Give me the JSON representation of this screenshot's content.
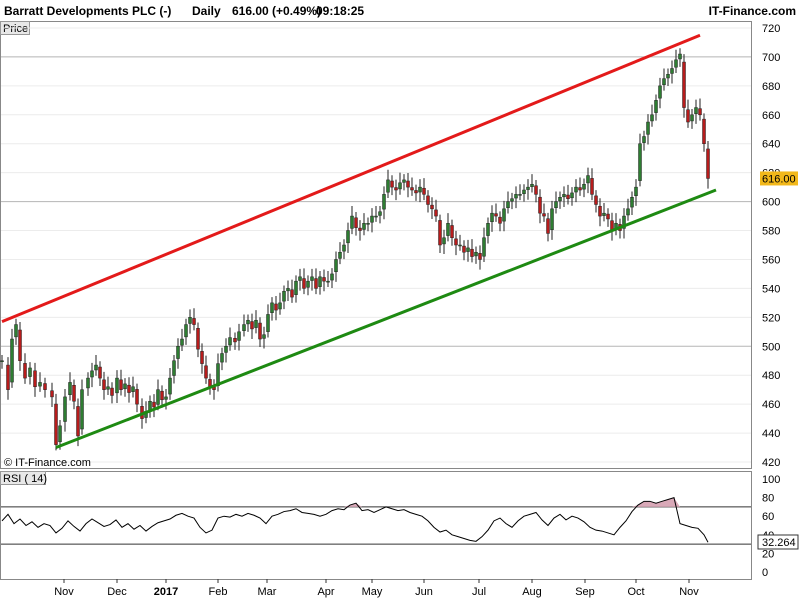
{
  "header": {
    "title": "Barratt Developments PLC (-)",
    "period": "Daily",
    "price": "616.00 (+0.49%)",
    "time": "09:18:25",
    "brand": "IT-Finance.com"
  },
  "watermark": "© IT-Finance.com",
  "colors": {
    "up": "#2e7d32",
    "down": "#b71c1c",
    "upper_channel": "#e31a1a",
    "lower_channel": "#1e8a12",
    "rsi_line": "#000000",
    "rsi_fill": "#d9a9b8",
    "current_label_bg": "#f2b81a"
  },
  "chart_data": [
    {
      "type": "candlestick",
      "title": "Price",
      "ylim": [
        420,
        720
      ],
      "yticks": [
        420,
        440,
        460,
        480,
        500,
        520,
        540,
        560,
        580,
        600,
        620,
        640,
        660,
        680,
        700,
        720
      ],
      "ytick_labels": [
        "420",
        "440",
        "460",
        "480",
        "500",
        "520",
        "540",
        "560",
        "580",
        "600",
        "620",
        "640",
        "660",
        "680",
        "700",
        "720"
      ],
      "xticks": [
        {
          "label": "Nov",
          "x": 64
        },
        {
          "label": "Dec",
          "x": 117
        },
        {
          "label": "2017",
          "x": 166
        },
        {
          "label": "Feb",
          "x": 218
        },
        {
          "label": "Mar",
          "x": 267
        },
        {
          "label": "Apr",
          "x": 326
        },
        {
          "label": "May",
          "x": 372
        },
        {
          "label": "Jun",
          "x": 424
        },
        {
          "label": "Jul",
          "x": 479
        },
        {
          "label": "Aug",
          "x": 532
        },
        {
          "label": "Sep",
          "x": 585
        },
        {
          "label": "Oct",
          "x": 636
        },
        {
          "label": "Nov",
          "x": 689
        }
      ],
      "x_range": [
        0,
        752
      ],
      "close_series": [
        [
          2,
          490
        ],
        [
          8,
          470
        ],
        [
          12,
          505
        ],
        [
          16,
          515
        ],
        [
          20,
          490
        ],
        [
          25,
          478
        ],
        [
          30,
          485
        ],
        [
          35,
          472
        ],
        [
          40,
          475
        ],
        [
          45,
          470
        ],
        [
          52,
          465
        ],
        [
          56,
          432
        ],
        [
          60,
          445
        ],
        [
          65,
          465
        ],
        [
          70,
          475
        ],
        [
          74,
          462
        ],
        [
          78,
          438
        ],
        [
          82,
          470
        ],
        [
          88,
          478
        ],
        [
          92,
          483
        ],
        [
          96,
          487
        ],
        [
          100,
          478
        ],
        [
          104,
          470
        ],
        [
          108,
          472
        ],
        [
          112,
          466
        ],
        [
          117,
          478
        ],
        [
          121,
          470
        ],
        [
          125,
          474
        ],
        [
          129,
          468
        ],
        [
          133,
          472
        ],
        [
          137,
          460
        ],
        [
          142,
          450
        ],
        [
          146,
          455
        ],
        [
          150,
          462
        ],
        [
          154,
          458
        ],
        [
          158,
          470
        ],
        [
          162,
          463
        ],
        [
          166,
          465
        ],
        [
          170,
          478
        ],
        [
          174,
          490
        ],
        [
          178,
          500
        ],
        [
          182,
          505
        ],
        [
          186,
          515
        ],
        [
          190,
          520
        ],
        [
          194,
          515
        ],
        [
          198,
          498
        ],
        [
          202,
          488
        ],
        [
          206,
          478
        ],
        [
          210,
          472
        ],
        [
          214,
          470
        ],
        [
          218,
          488
        ],
        [
          222,
          495
        ],
        [
          226,
          500
        ],
        [
          230,
          506
        ],
        [
          235,
          503
        ],
        [
          239,
          510
        ],
        [
          244,
          515
        ],
        [
          248,
          518
        ],
        [
          252,
          512
        ],
        [
          256,
          518
        ],
        [
          260,
          505
        ],
        [
          264,
          508
        ],
        [
          268,
          522
        ],
        [
          272,
          530
        ],
        [
          276,
          525
        ],
        [
          280,
          530
        ],
        [
          284,
          538
        ],
        [
          288,
          540
        ],
        [
          292,
          534
        ],
        [
          296,
          545
        ],
        [
          300,
          548
        ],
        [
          304,
          540
        ],
        [
          308,
          545
        ],
        [
          312,
          548
        ],
        [
          316,
          540
        ],
        [
          320,
          548
        ],
        [
          324,
          545
        ],
        [
          328,
          545
        ],
        [
          332,
          550
        ],
        [
          336,
          560
        ],
        [
          340,
          565
        ],
        [
          344,
          570
        ],
        [
          348,
          580
        ],
        [
          352,
          590
        ],
        [
          356,
          582
        ],
        [
          360,
          580
        ],
        [
          364,
          585
        ],
        [
          368,
          585
        ],
        [
          372,
          590
        ],
        [
          376,
          590
        ],
        [
          380,
          593
        ],
        [
          384,
          605
        ],
        [
          388,
          615
        ],
        [
          392,
          610
        ],
        [
          396,
          608
        ],
        [
          400,
          613
        ],
        [
          404,
          615
        ],
        [
          408,
          610
        ],
        [
          412,
          608
        ],
        [
          416,
          606
        ],
        [
          420,
          610
        ],
        [
          424,
          605
        ],
        [
          428,
          598
        ],
        [
          432,
          595
        ],
        [
          436,
          590
        ],
        [
          440,
          570
        ],
        [
          444,
          575
        ],
        [
          448,
          585
        ],
        [
          452,
          575
        ],
        [
          456,
          570
        ],
        [
          460,
          570
        ],
        [
          464,
          565
        ],
        [
          468,
          568
        ],
        [
          472,
          562
        ],
        [
          476,
          565
        ],
        [
          480,
          560
        ],
        [
          484,
          575
        ],
        [
          488,
          585
        ],
        [
          492,
          592
        ],
        [
          496,
          590
        ],
        [
          500,
          585
        ],
        [
          504,
          595
        ],
        [
          508,
          600
        ],
        [
          512,
          602
        ],
        [
          516,
          605
        ],
        [
          520,
          605
        ],
        [
          524,
          608
        ],
        [
          528,
          610
        ],
        [
          532,
          612
        ],
        [
          536,
          605
        ],
        [
          540,
          592
        ],
        [
          544,
          590
        ],
        [
          548,
          578
        ],
        [
          552,
          595
        ],
        [
          556,
          600
        ],
        [
          560,
          603
        ],
        [
          564,
          605
        ],
        [
          568,
          602
        ],
        [
          572,
          606
        ],
        [
          576,
          610
        ],
        [
          580,
          608
        ],
        [
          584,
          612
        ],
        [
          588,
          618
        ],
        [
          592,
          605
        ],
        [
          596,
          598
        ],
        [
          600,
          590
        ],
        [
          604,
          592
        ],
        [
          608,
          588
        ],
        [
          612,
          580
        ],
        [
          616,
          585
        ],
        [
          620,
          580
        ],
        [
          624,
          590
        ],
        [
          628,
          595
        ],
        [
          632,
          603
        ],
        [
          636,
          610
        ],
        [
          640,
          640
        ],
        [
          644,
          645
        ],
        [
          648,
          655
        ],
        [
          652,
          660
        ],
        [
          656,
          670
        ],
        [
          660,
          680
        ],
        [
          664,
          685
        ],
        [
          668,
          688
        ],
        [
          672,
          692
        ],
        [
          676,
          698
        ],
        [
          680,
          702
        ],
        [
          684,
          665
        ],
        [
          688,
          655
        ],
        [
          692,
          660
        ],
        [
          696,
          665
        ],
        [
          700,
          660
        ],
        [
          704,
          640
        ],
        [
          708,
          616
        ]
      ],
      "channel_lines": [
        {
          "name": "upper",
          "x1": 2,
          "y1": 517,
          "x2": 700,
          "y2": 715
        },
        {
          "name": "lower",
          "x1": 56,
          "y1": 430,
          "x2": 716,
          "y2": 608
        }
      ],
      "current_value": "616.00"
    },
    {
      "type": "line",
      "title": "RSI ( 14)",
      "ylim": [
        0,
        100
      ],
      "yticks": [
        0,
        20,
        40,
        60,
        80,
        100
      ],
      "ytick_labels": [
        "0",
        "20",
        "40",
        "60",
        "80",
        "100"
      ],
      "levels": [
        70,
        30
      ],
      "current_value": "32.264",
      "x": [
        2,
        8,
        14,
        20,
        26,
        32,
        38,
        44,
        50,
        56,
        62,
        68,
        74,
        80,
        86,
        92,
        98,
        104,
        110,
        116,
        122,
        128,
        134,
        140,
        146,
        152,
        158,
        164,
        170,
        176,
        182,
        188,
        194,
        200,
        206,
        212,
        218,
        224,
        230,
        236,
        242,
        248,
        254,
        260,
        266,
        272,
        278,
        284,
        290,
        296,
        302,
        308,
        314,
        320,
        326,
        332,
        338,
        344,
        350,
        356,
        362,
        368,
        374,
        380,
        386,
        392,
        398,
        404,
        410,
        416,
        422,
        428,
        434,
        440,
        446,
        452,
        458,
        464,
        470,
        476,
        482,
        488,
        494,
        500,
        506,
        512,
        518,
        524,
        530,
        536,
        542,
        548,
        554,
        560,
        566,
        572,
        578,
        584,
        590,
        596,
        602,
        608,
        614,
        620,
        626,
        632,
        638,
        644,
        650,
        656,
        662,
        668,
        674,
        680,
        686,
        692,
        698,
        704,
        708
      ],
      "values": [
        55,
        62,
        52,
        57,
        50,
        54,
        48,
        52,
        50,
        42,
        47,
        55,
        49,
        44,
        52,
        57,
        53,
        49,
        51,
        56,
        48,
        52,
        46,
        50,
        44,
        49,
        53,
        55,
        57,
        61,
        63,
        60,
        58,
        48,
        42,
        45,
        58,
        60,
        59,
        62,
        60,
        63,
        61,
        58,
        52,
        60,
        62,
        65,
        66,
        68,
        64,
        63,
        62,
        60,
        62,
        66,
        68,
        67,
        72,
        74,
        66,
        67,
        64,
        67,
        70,
        68,
        66,
        67,
        64,
        62,
        60,
        55,
        48,
        43,
        45,
        40,
        38,
        36,
        34,
        33,
        38,
        45,
        55,
        58,
        52,
        48,
        55,
        60,
        62,
        64,
        56,
        50,
        58,
        62,
        56,
        60,
        58,
        54,
        48,
        45,
        44,
        42,
        40,
        48,
        55,
        65,
        72,
        76,
        76,
        74,
        76,
        78,
        80,
        52,
        50,
        48,
        47,
        40,
        32
      ]
    }
  ]
}
